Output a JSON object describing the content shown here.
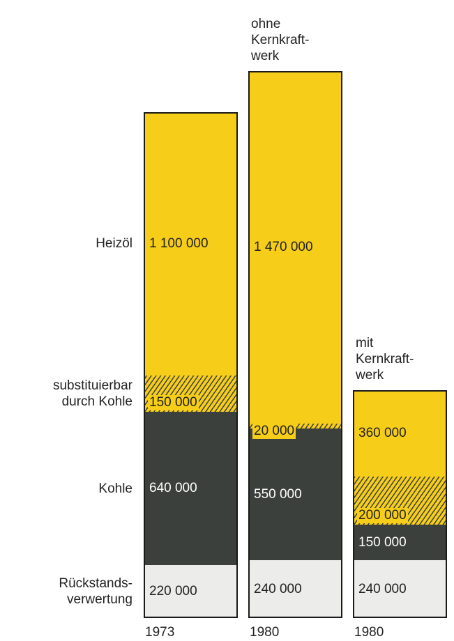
{
  "chart_data": {
    "type": "stacked-bar",
    "categories": [
      "1973",
      "1980",
      "1980"
    ],
    "annotations": [
      "ohne\nKernkraft-\nwerk",
      "mit\nKernkraft-\nwerk"
    ],
    "series": [
      {
        "name": "Rückstands-\nverwertung",
        "color": "#ececea",
        "values": [
          220000,
          240000,
          240000
        ],
        "value_labels": [
          "220 000",
          "240 000",
          "240 000"
        ]
      },
      {
        "name": "Kohle",
        "color": "#3b403d",
        "values": [
          640000,
          550000,
          150000
        ],
        "value_labels": [
          "640 000",
          "550 000",
          "150 000"
        ]
      },
      {
        "name": "substituierbar\ndurch Kohle",
        "color": "#f6cd18",
        "pattern": "hatch",
        "values": [
          150000,
          20000,
          200000
        ],
        "value_labels": [
          "150 000",
          "20 000",
          "200 000"
        ]
      },
      {
        "name": "Heizöl",
        "color": "#f6cd18",
        "values": [
          1100000,
          1470000,
          360000
        ],
        "value_labels": [
          "1 100 000",
          "1 470 000",
          "360 000"
        ]
      }
    ]
  }
}
